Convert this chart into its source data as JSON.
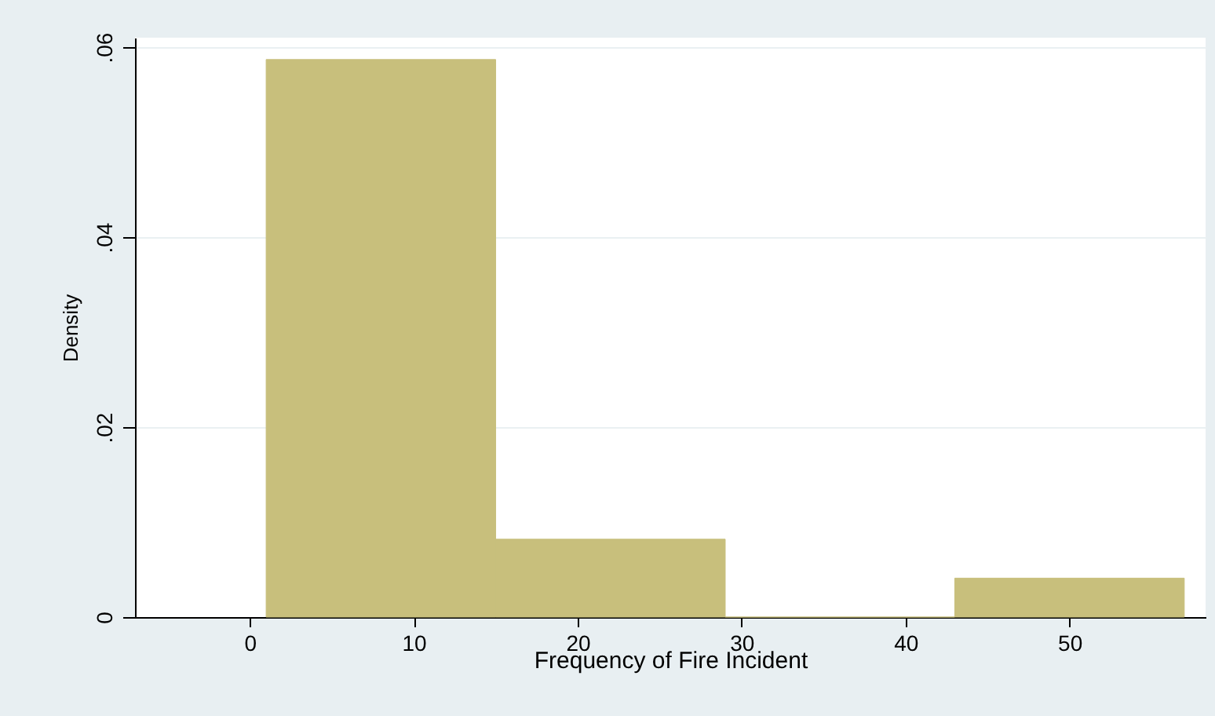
{
  "chart_data": {
    "type": "histogram",
    "xlabel": "Frequency of Fire Incident",
    "ylabel": "Density",
    "bins": [
      1,
      15,
      29,
      43,
      57
    ],
    "values": [
      0.0587,
      0.0082,
      0,
      0.0041
    ],
    "color": "#c8bf7c",
    "xlim": [
      -7,
      58.3
    ],
    "xticks": [
      0,
      10,
      20,
      30,
      40,
      50
    ],
    "ylim": [
      0,
      0.061
    ],
    "yticks": [
      {
        "value": 0,
        "label": "0"
      },
      {
        "value": 0.02,
        "label": ".02"
      },
      {
        "value": 0.04,
        "label": ".04"
      },
      {
        "value": 0.06,
        "label": ".06"
      }
    ],
    "grid": "y"
  }
}
